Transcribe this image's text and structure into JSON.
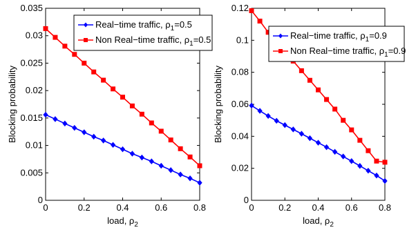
{
  "chart_data": [
    {
      "type": "line",
      "xlabel": "load, ρ",
      "xlabel_sub": "2",
      "ylabel": "Blocking probability",
      "xlim": [
        0,
        0.8
      ],
      "ylim": [
        0,
        0.035
      ],
      "xticks": [
        "0",
        "0.2",
        "0.4",
        "0.6",
        "0.8"
      ],
      "yticks": [
        "0",
        "0.005",
        "0.01",
        "0.015",
        "0.02",
        "0.025",
        "0.03",
        "0.035"
      ],
      "ytick_values": [
        0,
        0.005,
        0.01,
        0.015,
        0.02,
        0.025,
        0.03,
        0.035
      ],
      "xtick_values": [
        0,
        0.2,
        0.4,
        0.6,
        0.8
      ],
      "grid": false,
      "legend_position": "top-right",
      "x": [
        0,
        0.05,
        0.1,
        0.15,
        0.2,
        0.25,
        0.3,
        0.35,
        0.4,
        0.45,
        0.5,
        0.55,
        0.6,
        0.65,
        0.7,
        0.75,
        0.8
      ],
      "series": [
        {
          "name": "Real−time traffic, ρ",
          "name_sub": "1",
          "name_suffix": "=0.5",
          "color": "#0000ff",
          "marker": "diamond",
          "values": [
            0.0156,
            0.0148,
            0.014,
            0.0132,
            0.0124,
            0.0116,
            0.0109,
            0.0101,
            0.0093,
            0.0085,
            0.0078,
            0.0071,
            0.0063,
            0.0055,
            0.0047,
            0.004,
            0.0032
          ]
        },
        {
          "name": "Non Real−time traffic, ρ",
          "name_sub": "1",
          "name_suffix": "=0.5",
          "color": "#ff0000",
          "marker": "square",
          "values": [
            0.0313,
            0.0297,
            0.0281,
            0.0266,
            0.025,
            0.0234,
            0.0219,
            0.0203,
            0.0188,
            0.0172,
            0.0157,
            0.0141,
            0.0126,
            0.011,
            0.0094,
            0.0079,
            0.0063
          ]
        }
      ]
    },
    {
      "type": "line",
      "xlabel": "load, ρ",
      "xlabel_sub": "2",
      "ylabel": "Blocking probability",
      "xlim": [
        0,
        0.8
      ],
      "ylim": [
        0,
        0.12
      ],
      "xticks": [
        "0",
        "0.2",
        "0.4",
        "0.6",
        "0.8"
      ],
      "yticks": [
        "0",
        "0.02",
        "0.04",
        "0.06",
        "0.08",
        "0.1",
        "0.12"
      ],
      "ytick_values": [
        0,
        0.02,
        0.04,
        0.06,
        0.08,
        0.1,
        0.12
      ],
      "xtick_values": [
        0,
        0.2,
        0.4,
        0.6,
        0.8
      ],
      "grid": false,
      "legend_position": "top-right",
      "x": [
        0,
        0.05,
        0.1,
        0.15,
        0.2,
        0.25,
        0.3,
        0.35,
        0.4,
        0.45,
        0.5,
        0.55,
        0.6,
        0.65,
        0.7,
        0.75,
        0.8
      ],
      "series": [
        {
          "name": "Real−time traffic, ρ",
          "name_sub": "1",
          "name_suffix": "=0.9",
          "color": "#0000ff",
          "marker": "diamond",
          "values": [
            0.0592,
            0.0559,
            0.0527,
            0.0497,
            0.047,
            0.0443,
            0.0416,
            0.0388,
            0.036,
            0.0332,
            0.0303,
            0.0274,
            0.0245,
            0.0215,
            0.0185,
            0.0155,
            0.0121
          ]
        },
        {
          "name": "Non Real−time traffic, ρ",
          "name_sub": "1",
          "name_suffix": "=0.9",
          "color": "#ff0000",
          "marker": "square",
          "values": [
            0.1185,
            0.112,
            0.105,
            0.099,
            0.093,
            0.087,
            0.081,
            0.075,
            0.069,
            0.063,
            0.057,
            0.05,
            0.044,
            0.0375,
            0.031,
            0.0245,
            0.0238
          ]
        }
      ]
    }
  ]
}
